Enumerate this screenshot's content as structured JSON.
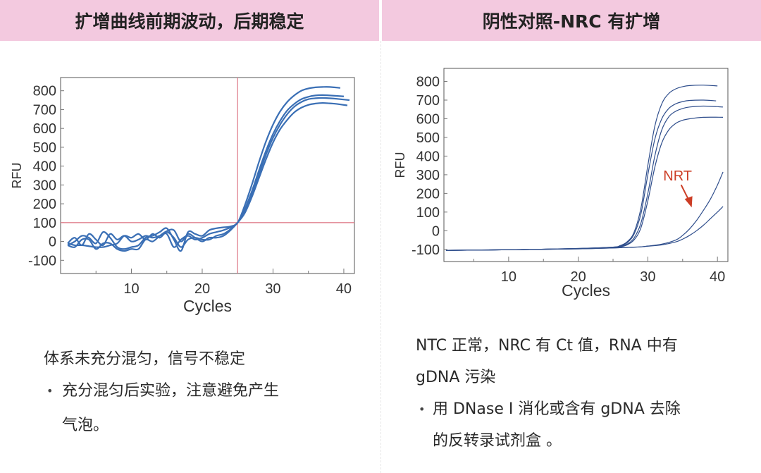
{
  "panels": [
    {
      "title": "扩增曲线前期波动，后期稳定",
      "heading": "体系未充分混匀，信号不稳定",
      "bullet_lines": [
        "充分混匀后实验，注意避免产生",
        "气泡。"
      ]
    },
    {
      "title": "阴性对照-NRC 有扩增",
      "heading_lines": [
        "NTC 正常，NRC 有 Ct 值，RNA 中有",
        "gDNA 污染"
      ],
      "bullet_lines": [
        "用 DNase Ⅰ 消化或含有 gDNA 去除",
        "的反转录试剂盒 。"
      ]
    }
  ],
  "bullet_char": "•",
  "chart_data": [
    {
      "type": "line",
      "xlabel": "Cycles",
      "ylabel": "RFU",
      "xlim": [
        0,
        41.5
      ],
      "ylim": [
        -170,
        870
      ],
      "xticks": [
        10,
        20,
        30,
        40
      ],
      "yticks": [
        -100,
        0,
        100,
        200,
        300,
        400,
        500,
        600,
        700,
        800
      ],
      "threshold": {
        "x": 25,
        "y": 100,
        "color": "#e0828f"
      },
      "line_color": "#3a6fb5",
      "series": [
        {
          "points": [
            [
              1,
              -20
            ],
            [
              2,
              0
            ],
            [
              3,
              30
            ],
            [
              4,
              20
            ],
            [
              5,
              -10
            ],
            [
              6,
              50
            ],
            [
              7,
              20
            ],
            [
              8,
              -30
            ],
            [
              9,
              -40
            ],
            [
              10,
              -30
            ],
            [
              11,
              -20
            ],
            [
              12,
              20
            ],
            [
              13,
              30
            ],
            [
              14,
              50
            ],
            [
              15,
              70
            ],
            [
              16,
              10
            ],
            [
              17,
              -50
            ],
            [
              18,
              50
            ],
            [
              19,
              40
            ],
            [
              20,
              30
            ],
            [
              21,
              60
            ],
            [
              22,
              70
            ],
            [
              23,
              75
            ],
            [
              24,
              80
            ],
            [
              25,
              100
            ],
            [
              26,
              190
            ],
            [
              27,
              300
            ],
            [
              28,
              420
            ],
            [
              29,
              530
            ],
            [
              30,
              620
            ],
            [
              31,
              690
            ],
            [
              32,
              740
            ],
            [
              33,
              775
            ],
            [
              34,
              800
            ],
            [
              35,
              812
            ],
            [
              36,
              818
            ],
            [
              37,
              820
            ],
            [
              38,
              820
            ],
            [
              39.5,
              815
            ]
          ]
        },
        {
          "points": [
            [
              1,
              -10
            ],
            [
              2,
              20
            ],
            [
              3,
              -20
            ],
            [
              4,
              40
            ],
            [
              5,
              10
            ],
            [
              6,
              -20
            ],
            [
              7,
              40
            ],
            [
              8,
              10
            ],
            [
              9,
              30
            ],
            [
              10,
              0
            ],
            [
              11,
              10
            ],
            [
              12,
              30
            ],
            [
              13,
              20
            ],
            [
              14,
              30
            ],
            [
              15,
              40
            ],
            [
              16,
              -30
            ],
            [
              17,
              10
            ],
            [
              18,
              30
            ],
            [
              19,
              10
            ],
            [
              20,
              20
            ],
            [
              21,
              40
            ],
            [
              22,
              50
            ],
            [
              23,
              60
            ],
            [
              24,
              75
            ],
            [
              25,
              100
            ],
            [
              26,
              170
            ],
            [
              27,
              265
            ],
            [
              28,
              375
            ],
            [
              29,
              480
            ],
            [
              30,
              570
            ],
            [
              31,
              640
            ],
            [
              32,
              695
            ],
            [
              33,
              730
            ],
            [
              34,
              755
            ],
            [
              35,
              768
            ],
            [
              36,
              775
            ],
            [
              37,
              777
            ],
            [
              38,
              775
            ],
            [
              40,
              770
            ]
          ]
        },
        {
          "points": [
            [
              1,
              -10
            ],
            [
              2,
              -20
            ],
            [
              3,
              -20
            ],
            [
              4,
              -25
            ],
            [
              5,
              -30
            ],
            [
              6,
              -30
            ],
            [
              7,
              -20
            ],
            [
              8,
              -10
            ],
            [
              9,
              30
            ],
            [
              10,
              20
            ],
            [
              11,
              40
            ],
            [
              12,
              10
            ],
            [
              13,
              40
            ],
            [
              14,
              20
            ],
            [
              15,
              50
            ],
            [
              16,
              20
            ],
            [
              17,
              -30
            ],
            [
              18,
              10
            ],
            [
              19,
              20
            ],
            [
              20,
              10
            ],
            [
              21,
              10
            ],
            [
              22,
              30
            ],
            [
              23,
              40
            ],
            [
              24,
              65
            ],
            [
              25,
              100
            ],
            [
              26,
              160
            ],
            [
              27,
              250
            ],
            [
              28,
              355
            ],
            [
              29,
              460
            ],
            [
              30,
              550
            ],
            [
              31,
              620
            ],
            [
              32,
              675
            ],
            [
              33,
              715
            ],
            [
              34,
              740
            ],
            [
              35,
              755
            ],
            [
              36,
              760
            ],
            [
              37,
              762
            ],
            [
              38,
              760
            ],
            [
              39,
              757
            ],
            [
              40.8,
              750
            ]
          ]
        },
        {
          "points": [
            [
              1,
              -20
            ],
            [
              2,
              -30
            ],
            [
              3,
              10
            ],
            [
              4,
              10
            ],
            [
              5,
              -40
            ],
            [
              6,
              -10
            ],
            [
              7,
              -10
            ],
            [
              8,
              -40
            ],
            [
              9,
              -50
            ],
            [
              10,
              -40
            ],
            [
              11,
              -40
            ],
            [
              12,
              10
            ],
            [
              13,
              0
            ],
            [
              14,
              30
            ],
            [
              15,
              55
            ],
            [
              16,
              60
            ],
            [
              17,
              0
            ],
            [
              18,
              40
            ],
            [
              19,
              20
            ],
            [
              20,
              0
            ],
            [
              21,
              20
            ],
            [
              22,
              20
            ],
            [
              23,
              30
            ],
            [
              24,
              60
            ],
            [
              25,
              100
            ],
            [
              26,
              150
            ],
            [
              27,
              235
            ],
            [
              28,
              335
            ],
            [
              29,
              435
            ],
            [
              30,
              525
            ],
            [
              31,
              595
            ],
            [
              32,
              645
            ],
            [
              33,
              685
            ],
            [
              34,
              710
            ],
            [
              35,
              725
            ],
            [
              36,
              732
            ],
            [
              37,
              735
            ],
            [
              38,
              733
            ],
            [
              39,
              730
            ],
            [
              40.5,
              722
            ]
          ]
        }
      ]
    },
    {
      "type": "line",
      "xlabel": "Cycles",
      "ylabel": "RFU",
      "xlim": [
        0.7,
        41.5
      ],
      "ylim": [
        -165,
        870
      ],
      "xticks": [
        10,
        20,
        30,
        40
      ],
      "yticks": [
        -100,
        0,
        100,
        200,
        300,
        400,
        500,
        600,
        700,
        800
      ],
      "line_color": "#2f4e8c",
      "annotation": {
        "text": "NRT",
        "color": "#cc3d25",
        "x": 36.3,
        "y": 110
      },
      "series": [
        {
          "points": [
            [
              1,
              -105
            ],
            [
              10,
              -102
            ],
            [
              20,
              -95
            ],
            [
              25,
              -88
            ],
            [
              26,
              -80
            ],
            [
              27,
              -60
            ],
            [
              28,
              -10
            ],
            [
              29,
              120
            ],
            [
              30,
              350
            ],
            [
              31,
              560
            ],
            [
              32,
              680
            ],
            [
              33,
              735
            ],
            [
              34,
              760
            ],
            [
              35,
              772
            ],
            [
              36,
              778
            ],
            [
              38,
              780
            ],
            [
              40,
              776
            ]
          ]
        },
        {
          "points": [
            [
              1,
              -105
            ],
            [
              10,
              -102
            ],
            [
              20,
              -95
            ],
            [
              25,
              -88
            ],
            [
              26,
              -82
            ],
            [
              27,
              -65
            ],
            [
              28,
              -20
            ],
            [
              29,
              90
            ],
            [
              30,
              300
            ],
            [
              31,
              490
            ],
            [
              32,
              600
            ],
            [
              33,
              655
            ],
            [
              34,
              680
            ],
            [
              35,
              692
            ],
            [
              36,
              698
            ],
            [
              38,
              700
            ],
            [
              39.8,
              696
            ]
          ]
        },
        {
          "points": [
            [
              1,
              -105
            ],
            [
              10,
              -102
            ],
            [
              20,
              -96
            ],
            [
              25,
              -89
            ],
            [
              26,
              -85
            ],
            [
              27,
              -72
            ],
            [
              28,
              -40
            ],
            [
              29,
              40
            ],
            [
              30,
              200
            ],
            [
              31,
              400
            ],
            [
              32,
              540
            ],
            [
              33,
              610
            ],
            [
              34,
              640
            ],
            [
              35,
              655
            ],
            [
              36,
              663
            ],
            [
              38,
              668
            ],
            [
              40.8,
              663
            ]
          ]
        },
        {
          "points": [
            [
              1,
              -105
            ],
            [
              10,
              -102
            ],
            [
              20,
              -96
            ],
            [
              25,
              -90
            ],
            [
              26,
              -87
            ],
            [
              27,
              -76
            ],
            [
              28,
              -50
            ],
            [
              29,
              15
            ],
            [
              30,
              160
            ],
            [
              31,
              340
            ],
            [
              32,
              470
            ],
            [
              33,
              540
            ],
            [
              34,
              575
            ],
            [
              35,
              592
            ],
            [
              36,
              600
            ],
            [
              38,
              608
            ],
            [
              40.8,
              608
            ]
          ]
        },
        {
          "name": "NRT",
          "points": [
            [
              1,
              -105
            ],
            [
              20,
              -97
            ],
            [
              28,
              -88
            ],
            [
              30,
              -82
            ],
            [
              32,
              -72
            ],
            [
              34,
              -50
            ],
            [
              35,
              -25
            ],
            [
              36,
              10
            ],
            [
              37,
              55
            ],
            [
              38,
              110
            ],
            [
              39,
              170
            ],
            [
              40,
              245
            ],
            [
              40.8,
              315
            ]
          ]
        },
        {
          "name": "NRT",
          "points": [
            [
              1,
              -105
            ],
            [
              20,
              -97
            ],
            [
              28,
              -88
            ],
            [
              30,
              -83
            ],
            [
              32,
              -76
            ],
            [
              34,
              -60
            ],
            [
              35,
              -45
            ],
            [
              36,
              -25
            ],
            [
              37,
              0
            ],
            [
              38,
              30
            ],
            [
              39,
              65
            ],
            [
              40,
              100
            ],
            [
              40.8,
              130
            ]
          ]
        }
      ]
    }
  ]
}
